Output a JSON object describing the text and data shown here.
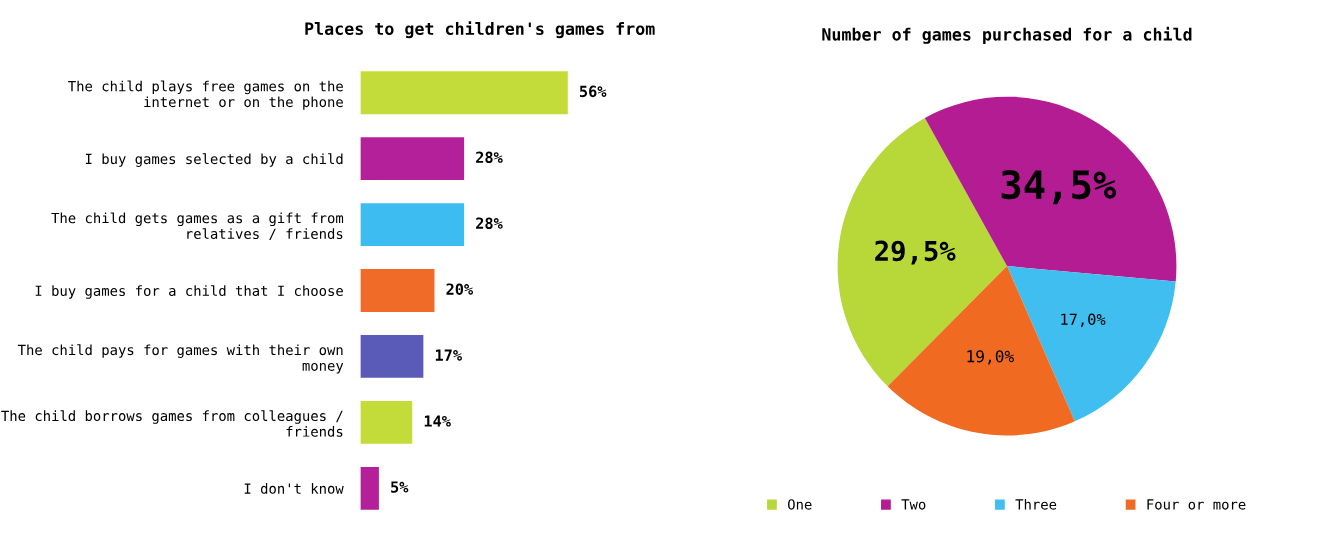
{
  "chart_data": [
    {
      "type": "bar",
      "orientation": "horizontal",
      "title": "Places to get children's games from",
      "categories": [
        "The child plays free games on the internet or on the phone",
        "I buy games selected by a child",
        "The child gets games as a gift from relatives / friends",
        "I buy games for a child that I choose",
        "The child pays for games with their own money",
        "The child borrows games from colleagues / friends",
        "I don't know"
      ],
      "values": [
        56,
        28,
        28,
        20,
        17,
        14,
        5
      ],
      "colors": [
        "#c4dc3a",
        "#b4209a",
        "#3cbcf0",
        "#f06a28",
        "#5a5ab8",
        "#c4dc3a",
        "#b4209a"
      ],
      "value_labels": [
        "56%",
        "28%",
        "28%",
        "20%",
        "17%",
        "14%",
        "5%"
      ]
    },
    {
      "type": "pie",
      "title": "Number of games purchased for a child",
      "categories": [
        "One",
        "Two",
        "Three",
        "Four or more"
      ],
      "values": [
        29.5,
        34.5,
        17.0,
        19.0
      ],
      "colors": [
        "#b8d83a",
        "#b41c94",
        "#40bef0",
        "#f06a22"
      ],
      "value_labels": [
        "29,5%",
        "34,5%",
        "17,0%",
        "19,0%"
      ],
      "legend": "bottom"
    }
  ]
}
